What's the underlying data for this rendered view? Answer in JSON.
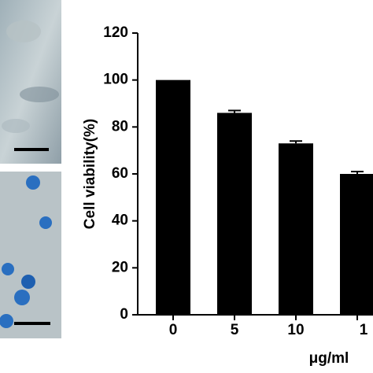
{
  "chart_data": {
    "type": "bar",
    "y_label": "Cell viability(%)",
    "x_label": "μg/ml",
    "categories": [
      "0",
      "5",
      "10",
      "1"
    ],
    "values": [
      100,
      86,
      73,
      60
    ],
    "errors": [
      0,
      1,
      1,
      1
    ],
    "color": "#000000",
    "ylim": [
      0,
      120
    ],
    "yticks": [
      0,
      20,
      40,
      60,
      80,
      100,
      120
    ],
    "grid": false
  }
}
